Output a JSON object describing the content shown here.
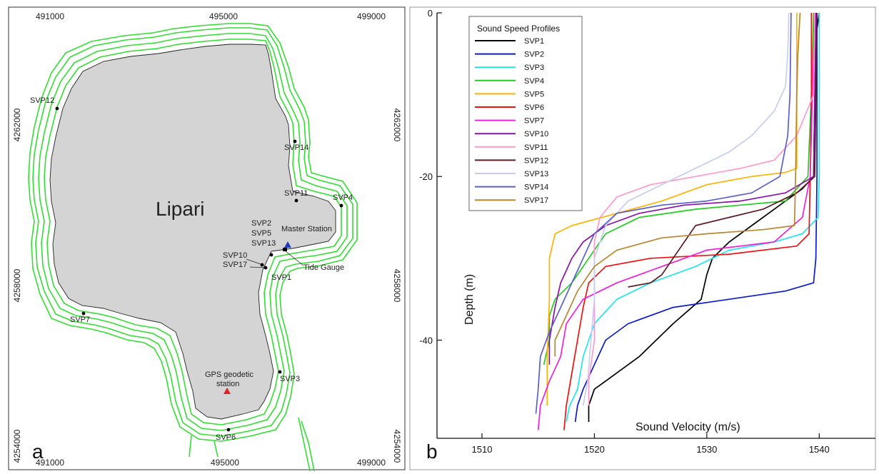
{
  "panel_a": {
    "label": "a",
    "island_name": "Lipari",
    "x_ticks": [
      "491000",
      "495000",
      "499000"
    ],
    "y_ticks": [
      "4262000",
      "4258000",
      "4254000"
    ],
    "stations": [
      {
        "label": "SVP12"
      },
      {
        "label": "SVP14"
      },
      {
        "label": "SVP11"
      },
      {
        "label": "SVP4"
      },
      {
        "label": "SVP2"
      },
      {
        "label": "SVP5"
      },
      {
        "label": "SVP13"
      },
      {
        "label": "SVP10"
      },
      {
        "label": "SVP17"
      },
      {
        "label": "SVP1"
      },
      {
        "label": "SVP7"
      },
      {
        "label": "SVP3"
      },
      {
        "label": "SVP6"
      }
    ],
    "annotations": {
      "master_station": "Master Station",
      "tide_gauge": "Tide Gauge",
      "gps_line1": "GPS geodetic",
      "gps_line2": "station"
    },
    "colors": {
      "tracks": "#33dd33",
      "land": "#d4d4d4",
      "master_station": "#1f3fbf",
      "gps_station": "#e02020"
    }
  },
  "chart_data": {
    "type": "line",
    "panel_label": "b",
    "xlabel": "Sound Velocity (m/s)",
    "ylabel": "Depth (m)",
    "xlim": [
      1506,
      1545
    ],
    "ylim": [
      -52,
      0
    ],
    "x_ticks": [
      1510,
      1520,
      1530,
      1540
    ],
    "y_ticks": [
      0,
      -20,
      -40
    ],
    "legend_title": "Sound Speed Profiles",
    "legend_position": "top-left",
    "series": [
      {
        "name": "SVP1",
        "color": "#000000",
        "points": [
          [
            1540,
            0
          ],
          [
            1539.8,
            -2
          ],
          [
            1539.6,
            -10
          ],
          [
            1539.5,
            -20
          ],
          [
            1538.5,
            -21.5
          ],
          [
            1536,
            -24
          ],
          [
            1534,
            -26
          ],
          [
            1532,
            -28
          ],
          [
            1530.5,
            -30
          ],
          [
            1530,
            -32
          ],
          [
            1529.5,
            -35
          ],
          [
            1527,
            -38
          ],
          [
            1524,
            -42
          ],
          [
            1521,
            -45
          ],
          [
            1520,
            -46
          ],
          [
            1519.5,
            -48
          ],
          [
            1519.5,
            -50
          ]
        ]
      },
      {
        "name": "SVP2",
        "color": "#0a1acc",
        "points": [
          [
            1539.8,
            0
          ],
          [
            1539.8,
            -10
          ],
          [
            1539.8,
            -20
          ],
          [
            1539.7,
            -30
          ],
          [
            1539.5,
            -33
          ],
          [
            1537,
            -34
          ],
          [
            1532,
            -35
          ],
          [
            1527,
            -36
          ],
          [
            1523,
            -38
          ],
          [
            1521,
            -40
          ],
          [
            1520,
            -43
          ],
          [
            1519,
            -46
          ],
          [
            1518.5,
            -48
          ],
          [
            1518.3,
            -50
          ]
        ]
      },
      {
        "name": "SVP3",
        "color": "#22e6ee",
        "points": [
          [
            1540,
            0
          ],
          [
            1540,
            -10
          ],
          [
            1540,
            -20
          ],
          [
            1539.9,
            -25
          ],
          [
            1538.5,
            -27
          ],
          [
            1536,
            -28
          ],
          [
            1532,
            -29
          ],
          [
            1529,
            -31
          ],
          [
            1525,
            -33
          ],
          [
            1522,
            -35
          ],
          [
            1520,
            -38
          ],
          [
            1519,
            -42
          ],
          [
            1518.5,
            -46
          ],
          [
            1517.8,
            -48
          ],
          [
            1517.5,
            -50
          ]
        ]
      },
      {
        "name": "SVP4",
        "color": "#22cc22",
        "points": [
          [
            1539.5,
            0
          ],
          [
            1539.4,
            -5
          ],
          [
            1539.3,
            -10
          ],
          [
            1539,
            -20
          ],
          [
            1537,
            -23
          ],
          [
            1533,
            -23.5
          ],
          [
            1529,
            -24
          ],
          [
            1524,
            -25
          ],
          [
            1521,
            -27
          ],
          [
            1519.5,
            -30
          ],
          [
            1518,
            -33
          ],
          [
            1516.5,
            -35
          ],
          [
            1516,
            -37
          ],
          [
            1516,
            -40
          ],
          [
            1515.5,
            -43
          ]
        ]
      },
      {
        "name": "SVP5",
        "color": "#ffb300",
        "points": [
          [
            1538,
            0
          ],
          [
            1538,
            -5
          ],
          [
            1538,
            -10
          ],
          [
            1538,
            -19
          ],
          [
            1537,
            -19.5
          ],
          [
            1534,
            -20
          ],
          [
            1530,
            -21
          ],
          [
            1526,
            -23
          ],
          [
            1522,
            -24.5
          ],
          [
            1518,
            -26
          ],
          [
            1516.5,
            -27
          ],
          [
            1516,
            -30
          ],
          [
            1516,
            -35
          ],
          [
            1515.8,
            -42
          ],
          [
            1515.8,
            -48
          ]
        ]
      },
      {
        "name": "SVP6",
        "color": "#ee1111",
        "points": [
          [
            1539.3,
            0
          ],
          [
            1539.3,
            -10
          ],
          [
            1539.2,
            -20
          ],
          [
            1539.1,
            -27
          ],
          [
            1538,
            -28.5
          ],
          [
            1532,
            -29.5
          ],
          [
            1525,
            -30
          ],
          [
            1521,
            -31
          ],
          [
            1519.5,
            -33
          ],
          [
            1519,
            -36
          ],
          [
            1518.5,
            -40
          ],
          [
            1518,
            -44
          ],
          [
            1517.5,
            -48
          ],
          [
            1517.3,
            -51
          ]
        ]
      },
      {
        "name": "SVP7",
        "color": "#ee22dd",
        "points": [
          [
            1539.6,
            0
          ],
          [
            1539.5,
            -5
          ],
          [
            1539.4,
            -10
          ],
          [
            1539.2,
            -20
          ],
          [
            1538.5,
            -25
          ],
          [
            1536,
            -28
          ],
          [
            1530,
            -29
          ],
          [
            1526,
            -31
          ],
          [
            1522,
            -33
          ],
          [
            1519,
            -35
          ],
          [
            1517.5,
            -38
          ],
          [
            1517,
            -42
          ],
          [
            1516,
            -45
          ],
          [
            1515.2,
            -48
          ],
          [
            1515,
            -51
          ]
        ]
      },
      {
        "name": "SVP10",
        "color": "#8a10aa",
        "points": [
          [
            1539.7,
            0
          ],
          [
            1539.6,
            -10
          ],
          [
            1539.5,
            -20
          ],
          [
            1537,
            -22
          ],
          [
            1533,
            -23
          ],
          [
            1528,
            -23.5
          ],
          [
            1524,
            -24.5
          ],
          [
            1521,
            -26
          ],
          [
            1519,
            -28
          ],
          [
            1518,
            -30
          ],
          [
            1517,
            -33
          ],
          [
            1516.5,
            -36
          ],
          [
            1516,
            -40
          ],
          [
            1516,
            -43
          ]
        ]
      },
      {
        "name": "SVP11",
        "color": "#ff99cc",
        "points": [
          [
            1539.6,
            0
          ],
          [
            1539.5,
            -10
          ],
          [
            1538,
            -15
          ],
          [
            1536,
            -18
          ],
          [
            1533,
            -19
          ],
          [
            1529,
            -20
          ],
          [
            1525,
            -21
          ],
          [
            1522,
            -22.5
          ],
          [
            1520.5,
            -25
          ],
          [
            1520,
            -28
          ],
          [
            1520,
            -32
          ],
          [
            1520,
            -36
          ],
          [
            1520,
            -40
          ],
          [
            1519.5,
            -45
          ],
          [
            1519.5,
            -48
          ]
        ]
      },
      {
        "name": "SVP12",
        "color": "#5a1a22",
        "points": [
          [
            1539.8,
            0
          ],
          [
            1539.7,
            -10
          ],
          [
            1539.6,
            -20
          ],
          [
            1538,
            -22
          ],
          [
            1535,
            -24
          ],
          [
            1532,
            -25
          ],
          [
            1529,
            -26
          ],
          [
            1528,
            -28
          ],
          [
            1527,
            -30
          ],
          [
            1526,
            -32
          ],
          [
            1525,
            -33
          ],
          [
            1523,
            -33.5
          ]
        ]
      },
      {
        "name": "SVP13",
        "color": "#c7cdf0",
        "points": [
          [
            1537.3,
            0
          ],
          [
            1537.2,
            -5
          ],
          [
            1537,
            -9
          ],
          [
            1536,
            -12
          ],
          [
            1534,
            -15
          ],
          [
            1532,
            -17
          ],
          [
            1529,
            -19
          ],
          [
            1526,
            -21
          ],
          [
            1523,
            -23
          ],
          [
            1521,
            -26
          ],
          [
            1520,
            -30
          ],
          [
            1520,
            -35
          ],
          [
            1519.7,
            -40
          ],
          [
            1519.4,
            -45
          ],
          [
            1519,
            -48
          ]
        ]
      },
      {
        "name": "SVP14",
        "color": "#5a5fc9",
        "points": [
          [
            1537.5,
            0
          ],
          [
            1537.4,
            -10
          ],
          [
            1537.2,
            -15
          ],
          [
            1536.5,
            -20
          ],
          [
            1534,
            -22
          ],
          [
            1530,
            -23
          ],
          [
            1526,
            -23.5
          ],
          [
            1522,
            -24.5
          ],
          [
            1520,
            -27
          ],
          [
            1519,
            -30
          ],
          [
            1518,
            -33
          ],
          [
            1517,
            -36
          ],
          [
            1516,
            -39
          ],
          [
            1515.2,
            -42
          ],
          [
            1515,
            -46
          ],
          [
            1514.8,
            -49
          ]
        ]
      },
      {
        "name": "SVP17",
        "color": "#b8862e",
        "points": [
          [
            1538.3,
            0
          ],
          [
            1538.1,
            -5
          ],
          [
            1538,
            -10
          ],
          [
            1537.9,
            -20
          ],
          [
            1537.8,
            -26
          ],
          [
            1535,
            -26.5
          ],
          [
            1530,
            -27
          ],
          [
            1526,
            -27.5
          ],
          [
            1522,
            -29
          ],
          [
            1520,
            -31
          ],
          [
            1518.5,
            -34
          ],
          [
            1517.5,
            -37
          ],
          [
            1516.5,
            -40
          ],
          [
            1516.5,
            -42
          ]
        ]
      }
    ]
  }
}
